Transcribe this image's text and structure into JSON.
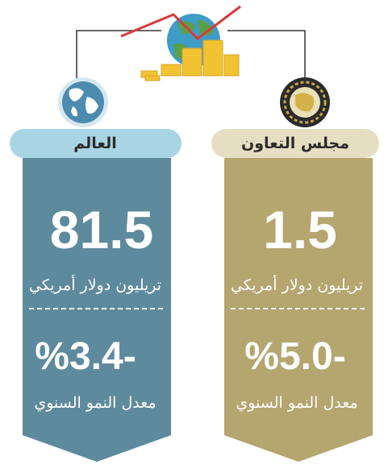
{
  "panels": [
    {
      "label": "العالم",
      "value": "81.5",
      "unit": "تريليون دولار أمريكي",
      "growth": "%3.4-",
      "growth_label": "معدل النمو السنوي"
    },
    {
      "label": "مجلس التعاون",
      "value": "1.5",
      "unit": "تريليون دولار أمريكي",
      "growth": "%5.0-",
      "growth_label": "معدل النمو السنوي"
    }
  ]
}
